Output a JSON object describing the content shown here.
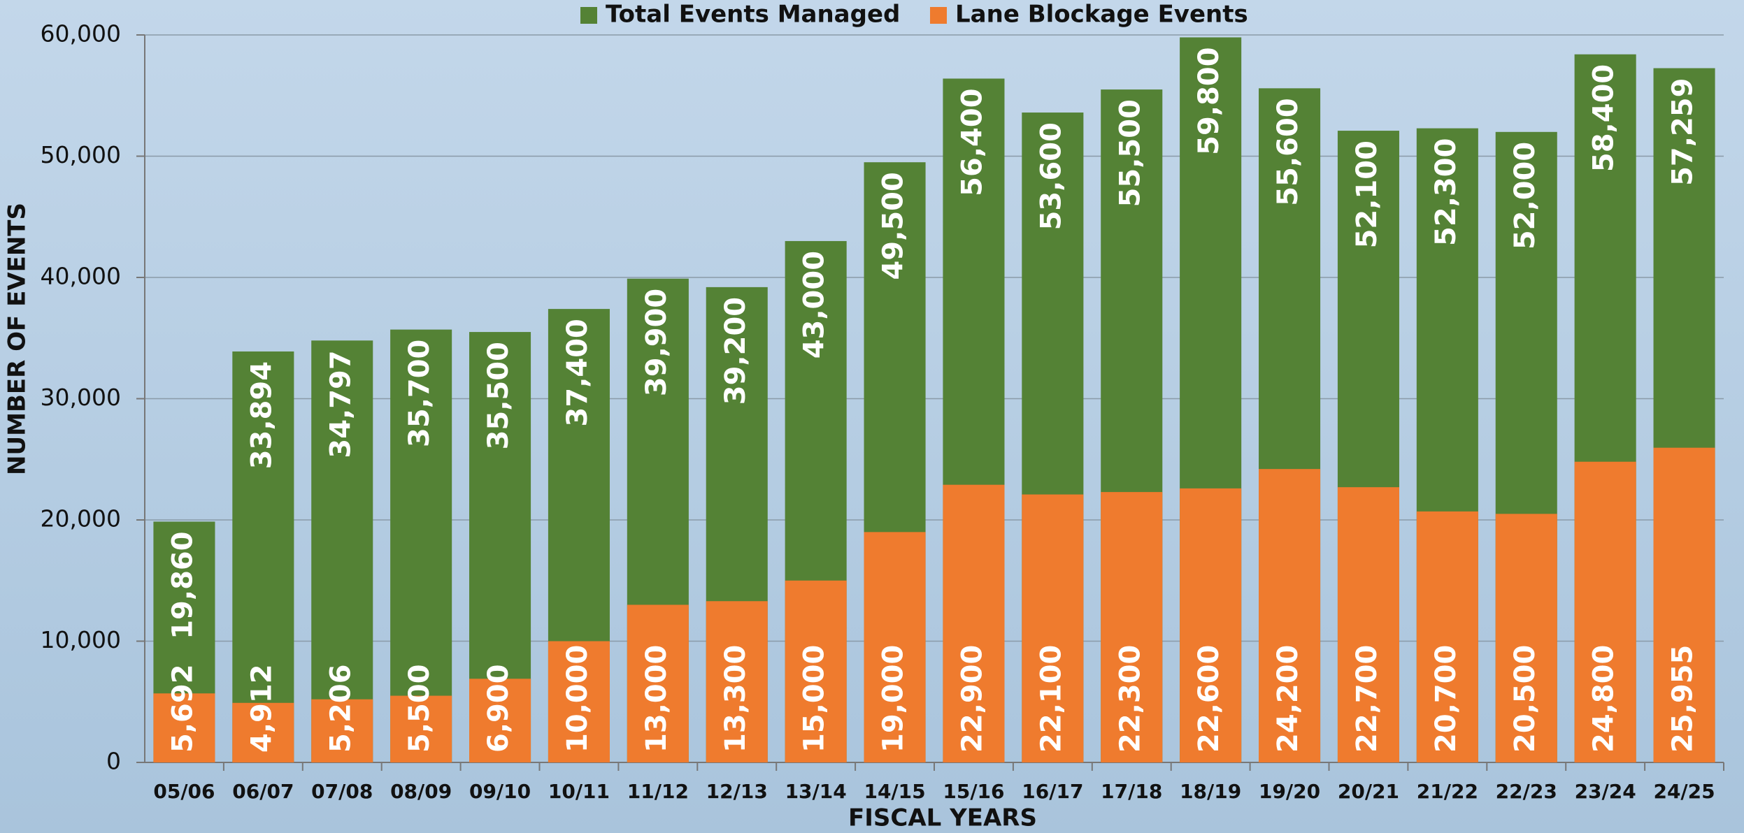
{
  "chart_data": {
    "type": "bar",
    "overlap": true,
    "x_label": "FISCAL YEARS",
    "y_label": "NUMBER OF EVENTS",
    "categories": [
      "05/06",
      "06/07",
      "07/08",
      "08/09",
      "09/10",
      "10/11",
      "11/12",
      "12/13",
      "13/14",
      "14/15",
      "15/16",
      "16/17",
      "17/18",
      "18/19",
      "19/20",
      "20/21",
      "21/22",
      "22/23",
      "23/24",
      "24/25"
    ],
    "series": [
      {
        "name": "Total Events Managed",
        "color": "#548235",
        "values": [
          19860,
          33894,
          34797,
          35700,
          35500,
          37400,
          39900,
          39200,
          43000,
          49500,
          56400,
          53600,
          55500,
          59800,
          55600,
          52100,
          52300,
          52000,
          58400,
          57259
        ],
        "value_labels": [
          "19,860",
          "33,894",
          "34,797",
          "35,700",
          "35,500",
          "37,400",
          "39,900",
          "39,200",
          "43,000",
          "49,500",
          "56,400",
          "53,600",
          "55,500",
          "59,800",
          "55,600",
          "52,100",
          "52,300",
          "52,000",
          "58,400",
          "57,259"
        ]
      },
      {
        "name": "Lane Blockage Events",
        "color": "#ef7b2e",
        "values": [
          5692,
          4912,
          5206,
          5500,
          6900,
          10000,
          13000,
          13300,
          15000,
          19000,
          22900,
          22100,
          22300,
          22600,
          24200,
          22700,
          20700,
          20500,
          24800,
          25955
        ],
        "value_labels": [
          "5,692",
          "4,912",
          "5,206",
          "5,500",
          "6,900",
          "10,000",
          "13,000",
          "13,300",
          "15,000",
          "19,000",
          "22,900",
          "22,100",
          "22,300",
          "22,600",
          "24,200",
          "22,700",
          "20,700",
          "20,500",
          "24,800",
          "25,955"
        ]
      }
    ],
    "ylim": [
      0,
      60000
    ],
    "yticks": [
      0,
      {
        "value": 10000,
        "label": "10,000"
      },
      {
        "value": 20000,
        "label": "20,000"
      },
      {
        "value": 30000,
        "label": "30,000"
      },
      {
        "value": 40000,
        "label": "40,000"
      },
      {
        "value": 50000,
        "label": "50,000"
      },
      {
        "value": 60000,
        "label": "60,000"
      }
    ],
    "grid": true,
    "legend": "top"
  }
}
